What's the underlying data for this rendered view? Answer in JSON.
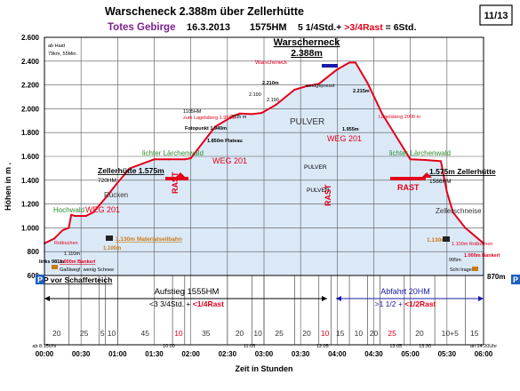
{
  "header": {
    "title": "Warscheneck 2.388m über Zellerhütte",
    "region": "Totes Gebirge",
    "date": "16.3.2013",
    "hm": "1575HM",
    "time_plus": "5 1/4Std.+ ",
    "rast": ">3/4Rast",
    "total": " = 6Std.",
    "page": "11/13"
  },
  "colors": {
    "fill": "#dbe9f7",
    "line": "#e2001a",
    "grid": "#555555",
    "title_purple": "#7a1f8f",
    "arrow_blue": "#1a1aa8",
    "green": "#2e8b2e",
    "orange": "#c87a14",
    "parking": "#1f5fc0"
  },
  "chart_data": {
    "type": "area",
    "title": "Warscheneck 2.388m über Zellerhütte",
    "xlabel": "Zeit in Stunden",
    "ylabel": "Höhen in m .",
    "xlim": [
      "00:00",
      "06:00"
    ],
    "ylim": [
      600,
      2600
    ],
    "x_ticks": [
      "00:00",
      "00:30",
      "01:00",
      "01:30",
      "02:00",
      "02:30",
      "03:00",
      "03:30",
      "04:00",
      "04:30",
      "05:00",
      "05:30",
      "06:00"
    ],
    "y_ticks": [
      "600",
      "800",
      "1.000",
      "1.200",
      "1.400",
      "1.600",
      "1.800",
      "2.000",
      "2.200",
      "2.400",
      "2.600"
    ],
    "grid": true,
    "profile": {
      "x_minutes": [
        0,
        8,
        15,
        20,
        22,
        25,
        34,
        40,
        50,
        60,
        70,
        90,
        102,
        115,
        120,
        140,
        155,
        160,
        170,
        178,
        190,
        205,
        215,
        225,
        240,
        250,
        255,
        265,
        277,
        300,
        312,
        325,
        330,
        335,
        345,
        360
      ],
      "elevation_m": [
        870,
        910,
        981,
        1000,
        1110,
        1100,
        1100,
        1130,
        1250,
        1380,
        1500,
        1575,
        1575,
        1575,
        1585,
        1850,
        1940,
        1960,
        1955,
        1965,
        2035,
        2160,
        2190,
        2210,
        2330,
        2388,
        2388,
        2215,
        1955,
        1575,
        1570,
        1560,
        1300,
        1130,
        1000,
        870
      ]
    },
    "segments_minutes": [
      "20",
      "25",
      "5",
      "10",
      "45",
      "10",
      "35",
      "20",
      "10",
      "25",
      "20",
      "10",
      "15",
      "10",
      "20",
      "25",
      "20",
      "10+5",
      "15"
    ],
    "clock_times": [
      "ab 8:15Uhr",
      "10:00",
      "11:05",
      "12:05",
      "13:05",
      "13:30",
      "an 14:20Uhr"
    ],
    "annotations": {
      "summit": "Warscherneck",
      "summit_alt": "2.388m",
      "warscheneck_small": "Warscheneck",
      "windgepresst": "windgepresst",
      "hut_up": "Zellerhütte 1.575m",
      "hut_up_alt": "720HM",
      "hut_down": "1.575m Zellerhütte",
      "hut_down_alt": "1566HM",
      "ruecken": "Rücken",
      "weg201_a": "WEG 201",
      "weg201_b": "WEG 201",
      "weg201_c": "WEG 201",
      "laerchen_up": "lichter Lärchenwald",
      "laerchen_down": "lichter Lärchenwald",
      "hochwald": "Hochwald",
      "rotbuchen_up": "Rotbuchen",
      "rotbuchen_down": "1.100m Rotbuchen",
      "materialseilbahn": "1.130m Materialseilbahn",
      "m1100": "1.100m",
      "m1130_down": "1.130m",
      "bankerl_up": "1.000m Bankerl",
      "bankerl_down": "1.000m Bankerl",
      "gasslweg": "Gaßlweg!, wenig Schnee",
      "m1110": "1.110m",
      "links981": "links 981m",
      "p_schafferteich": "P vor Schafferteich",
      "m870": "870m",
      "m995": "995m",
      "schi_tragen": "Schi tragen",
      "zellerschneise": "Zellerschneise",
      "ab_haid": "ab Haid",
      "ab_haid_2": "79km, 55Min.",
      "rast_1": "RAST",
      "rast_2": "RAST",
      "rast_3": "RAST",
      "pulver_1": "PULVER",
      "pulver_2": "PULVER",
      "pulver_3": "PULVER",
      "fotopunkt": "Fotopunkt 1.940m",
      "plateau": "1.850m Plateau",
      "hm1105": "1105HM",
      "lagelsberg_up": "zum Lagelsberg 1.955m",
      "m2035": "2035 m",
      "m2190a": "2.190",
      "m2190b": "2.190",
      "m2210": "2.210m",
      "m2215": "2.215m",
      "m1955": "1.955m",
      "lagelsberg_down": "Lagelsberg 2008 m",
      "aufstieg_1": "Aufstieg 1555HM",
      "aufstieg_2a": "<3 3/4Std. + ",
      "aufstieg_2b": "<1/4Rast",
      "abfahrt_1": "Abfahrt 20HM",
      "abfahrt_2a": ">1 1/2 + ",
      "abfahrt_2b": "<1/2Rast",
      "parking_1": "P",
      "parking_2": "P"
    }
  }
}
